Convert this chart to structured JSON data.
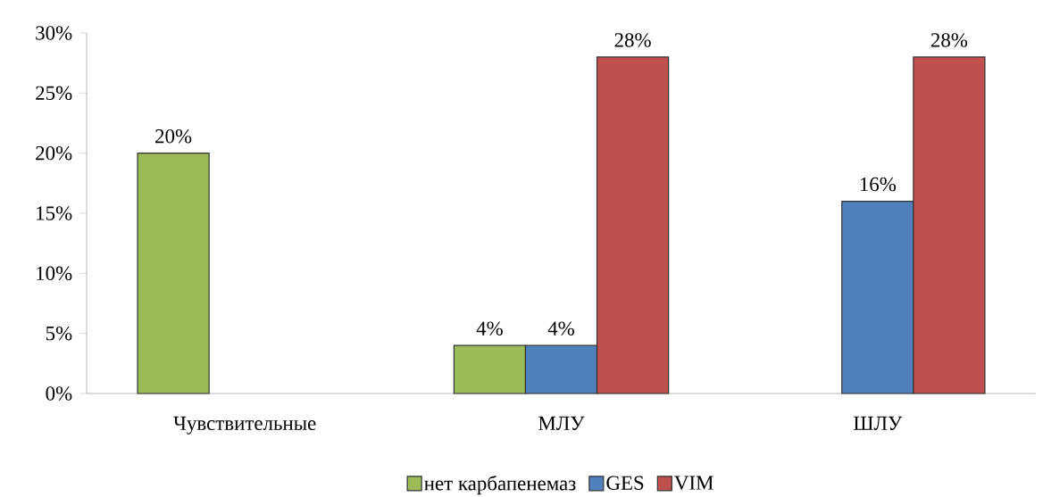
{
  "chart_data": {
    "type": "bar",
    "categories": [
      "Чувствительные",
      "МЛУ",
      "ШЛУ"
    ],
    "series": [
      {
        "name": "нет карбапенемаз",
        "color": "#9bbb59",
        "values": [
          20,
          4,
          null
        ],
        "value_labels": [
          "20%",
          "4%",
          null
        ]
      },
      {
        "name": "GES",
        "color": "#4f81bd",
        "values": [
          null,
          4,
          16
        ],
        "value_labels": [
          null,
          "4%",
          "16%"
        ]
      },
      {
        "name": "VIM",
        "color": "#c0504d",
        "values": [
          null,
          28,
          28
        ],
        "value_labels": [
          null,
          "28%",
          "28%"
        ]
      }
    ],
    "ylim": [
      0,
      30
    ],
    "yticks": [
      {
        "value": 0,
        "label": "0%"
      },
      {
        "value": 5,
        "label": "5%"
      },
      {
        "value": 10,
        "label": "10%"
      },
      {
        "value": 15,
        "label": "15%"
      },
      {
        "value": 20,
        "label": "20%"
      },
      {
        "value": 25,
        "label": "25%"
      },
      {
        "value": 30,
        "label": "30%"
      }
    ],
    "grid": false,
    "legend": "bottom"
  }
}
